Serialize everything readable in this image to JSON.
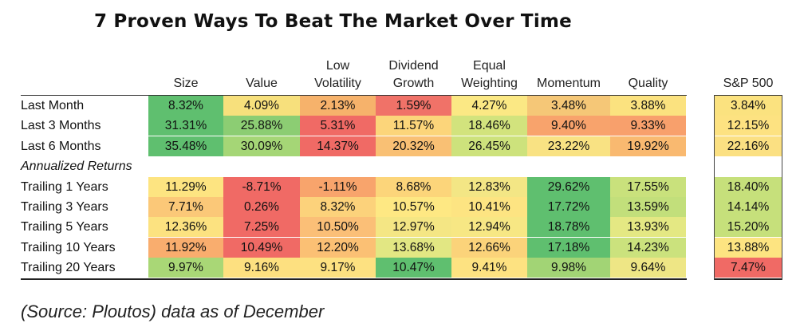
{
  "chart_data": {
    "type": "table",
    "title": "7 Proven Ways To Beat The Market Over Time",
    "columns": [
      {
        "lines": [
          "Size"
        ]
      },
      {
        "lines": [
          "Value"
        ]
      },
      {
        "lines": [
          "Low",
          "Volatility"
        ]
      },
      {
        "lines": [
          "Dividend",
          "Growth"
        ]
      },
      {
        "lines": [
          "Equal",
          "Weighting"
        ]
      },
      {
        "lines": [
          "Momentum"
        ]
      },
      {
        "lines": [
          "Quality"
        ]
      },
      {
        "lines": [
          "S&P 500"
        ]
      }
    ],
    "rows": [
      {
        "label": "Last Month",
        "values": [
          "8.32%",
          "4.09%",
          "2.13%",
          "1.59%",
          "4.27%",
          "3.48%",
          "3.88%",
          "3.84%"
        ],
        "colors": [
          "#5fbf6f",
          "#f7e07c",
          "#f6b26b",
          "#f07268",
          "#fbe884",
          "#f5c777",
          "#fbe27f",
          "#fbe27f"
        ]
      },
      {
        "label": "Last 3 Months",
        "values": [
          "31.31%",
          "25.88%",
          "5.31%",
          "11.57%",
          "18.46%",
          "9.40%",
          "9.33%",
          "12.15%"
        ],
        "colors": [
          "#5fbf6f",
          "#8ccd73",
          "#f06a65",
          "#fcd57a",
          "#d2e37d",
          "#f8a36c",
          "#f8a06c",
          "#fde281"
        ]
      },
      {
        "label": "Last 6 Months",
        "values": [
          "35.48%",
          "30.09%",
          "14.37%",
          "20.32%",
          "26.45%",
          "23.22%",
          "19.92%",
          "22.16%"
        ],
        "colors": [
          "#5fbf6f",
          "#a5d676",
          "#f06a65",
          "#f9c074",
          "#cde27c",
          "#f9e283",
          "#f9b970",
          "#fbe082"
        ]
      },
      {
        "label": "Annualized Returns",
        "italic": true,
        "values": null
      },
      {
        "label": "Trailing 1 Years",
        "values": [
          "11.29%",
          "-8.71%",
          "-1.11%",
          "8.68%",
          "12.83%",
          "29.62%",
          "17.55%",
          "18.40%"
        ],
        "colors": [
          "#fde481",
          "#f06a65",
          "#f8a46c",
          "#fcd57a",
          "#f3e685",
          "#5fbf6f",
          "#c9e17c",
          "#c6e07b"
        ]
      },
      {
        "label": "Trailing 3 Years",
        "values": [
          "7.71%",
          "0.26%",
          "8.32%",
          "10.57%",
          "10.41%",
          "17.72%",
          "13.59%",
          "14.14%"
        ],
        "colors": [
          "#fbc878",
          "#f06a65",
          "#fcd27b",
          "#fee883",
          "#fde482",
          "#5fbf6f",
          "#c2df7b",
          "#c6e07b"
        ]
      },
      {
        "label": "Trailing 5 Years",
        "values": [
          "12.36%",
          "7.25%",
          "10.50%",
          "12.97%",
          "12.94%",
          "18.78%",
          "13.93%",
          "15.20%"
        ],
        "colors": [
          "#fce280",
          "#f06a65",
          "#fbbf77",
          "#f4e684",
          "#f7e784",
          "#5fbf6f",
          "#e4e883",
          "#c6e07b"
        ]
      },
      {
        "label": "Trailing 10 Years",
        "values": [
          "11.92%",
          "10.49%",
          "12.20%",
          "13.68%",
          "12.66%",
          "17.18%",
          "14.23%",
          "13.88%"
        ],
        "colors": [
          "#f9ad6e",
          "#f06a65",
          "#fbc074",
          "#e2e783",
          "#fbd37a",
          "#5fbf6f",
          "#cbe27d",
          "#fde481"
        ]
      },
      {
        "label": "Trailing 20 Years",
        "values": [
          "9.97%",
          "9.16%",
          "9.17%",
          "10.47%",
          "9.41%",
          "9.98%",
          "9.64%",
          "7.47%"
        ],
        "colors": [
          "#a9d776",
          "#fde080",
          "#fde181",
          "#5fbf6f",
          "#fde281",
          "#a2d475",
          "#eee685",
          "#f06a65"
        ]
      }
    ]
  },
  "source_note": "(Source: Ploutos) data as of December"
}
